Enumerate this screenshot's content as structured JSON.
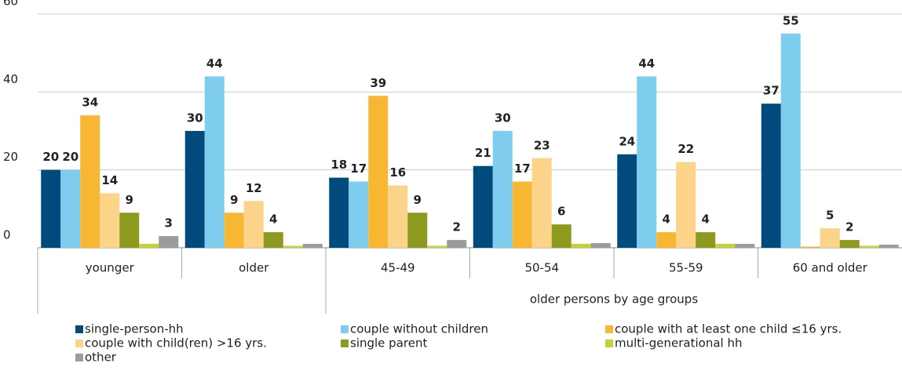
{
  "chart_data": {
    "type": "bar",
    "categories": [
      "younger",
      "older",
      "45-49",
      "50-54",
      "55-59",
      "60 and older"
    ],
    "group_label": "older persons by age groups",
    "series": [
      {
        "name": "single-person-hh",
        "color": "#004a7c",
        "values": [
          20,
          30,
          18,
          21,
          24,
          37
        ],
        "value_labels": [
          "20",
          "30",
          "18",
          "21",
          "24",
          "37"
        ]
      },
      {
        "name": "couple without children",
        "color": "#7fcdee",
        "values": [
          20,
          44,
          17,
          30,
          44,
          55
        ],
        "value_labels": [
          "20",
          "44",
          "17",
          "30",
          "44",
          "55"
        ]
      },
      {
        "name": "couple with at least one child ≤16 yrs.",
        "color": "#f7b733",
        "values": [
          34,
          9,
          39,
          17,
          4,
          0.3
        ],
        "value_labels": [
          "34",
          "9",
          "39",
          "17",
          "4",
          null
        ]
      },
      {
        "name": "couple with child(ren) >16 yrs.",
        "color": "#fbd48a",
        "values": [
          14,
          12,
          16,
          23,
          22,
          5
        ],
        "value_labels": [
          "14",
          "12",
          "16",
          "23",
          "22",
          "5"
        ]
      },
      {
        "name": "single parent",
        "color": "#8e9a1e",
        "values": [
          9,
          4,
          9,
          6,
          4,
          2
        ],
        "value_labels": [
          "9",
          "4",
          "9",
          "6",
          "4",
          "2"
        ]
      },
      {
        "name": "multi-generational hh",
        "color": "#c4d232",
        "values": [
          1,
          0.5,
          0.5,
          1,
          1,
          0.5
        ],
        "value_labels": [
          null,
          null,
          null,
          null,
          null,
          null
        ]
      },
      {
        "name": "other",
        "color": "#9a9b9d",
        "values": [
          3,
          1,
          2,
          1.2,
          1,
          0.8
        ],
        "value_labels": [
          "3",
          null,
          "2",
          null,
          null,
          null
        ]
      }
    ],
    "ylim": [
      0,
      60
    ],
    "yticks": [
      0,
      20,
      40,
      60
    ],
    "grid": true
  }
}
